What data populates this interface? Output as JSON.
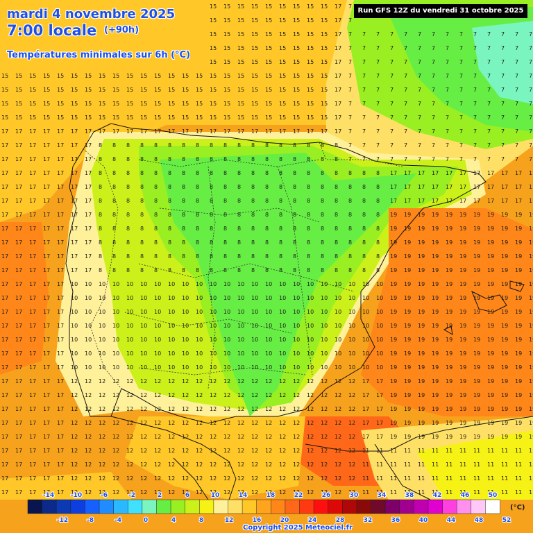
{
  "header": {
    "date": "mardi 4 novembre 2025",
    "time": "7:00 locale",
    "offset": "(+90h)",
    "parameter": "Températures minimales sur 6h (°C)",
    "run": "Run GFS 12Z du vendredi 31 octobre 2025"
  },
  "footer": {
    "copyright": "Copyright 2025 Meteociel.fr",
    "unit": "(°C)"
  },
  "legend": {
    "upper_labels": [
      "-14",
      "-10",
      "-6",
      "-2",
      "2",
      "6",
      "10",
      "14",
      "18",
      "22",
      "26",
      "30",
      "34",
      "38",
      "42",
      "46",
      "50"
    ],
    "lower_labels": [
      "-12",
      "-8",
      "-4",
      "0",
      "4",
      "8",
      "12",
      "16",
      "20",
      "24",
      "28",
      "32",
      "36",
      "40",
      "44",
      "48",
      "52"
    ],
    "colors": [
      "#0a1550",
      "#0b2a8a",
      "#0c3ab5",
      "#0d3fe0",
      "#1560ff",
      "#1f8cff",
      "#2ab8ff",
      "#40e0ff",
      "#7af5c0",
      "#66ee44",
      "#99ef22",
      "#ccf01a",
      "#f6f216",
      "#fff199",
      "#ffe066",
      "#ffc828",
      "#ffa41c",
      "#ff8618",
      "#ff6818",
      "#ff3a10",
      "#ff1010",
      "#dd0808",
      "#b00808",
      "#8a0a0a",
      "#700a2a",
      "#80006a",
      "#a0008f",
      "#c000b0",
      "#e000d0",
      "#ff40e0",
      "#ff90f0",
      "#ffc8f8",
      "#ffffff"
    ]
  },
  "colors": {
    "title": "#1e50e6",
    "warm_sea": "#f7a21c",
    "land_cool": "#66ee44",
    "land_mild": "#ccf01a",
    "coast_yellow": "#fff199"
  },
  "grid_values": {
    "north_atlantic": "15",
    "biscay_east": "7",
    "north_meseta": "8",
    "south_meseta": "10",
    "andalusia": "12",
    "mediterranean": "19",
    "atlantic_west": "17",
    "north_africa": "11"
  }
}
